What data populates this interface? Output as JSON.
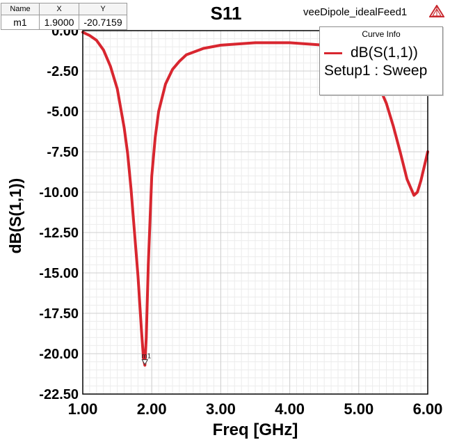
{
  "header": {
    "title": "S11",
    "project": "veeDipole_idealFeed1"
  },
  "marker_table": {
    "columns": [
      "Name",
      "X",
      "Y"
    ],
    "rows": [
      [
        "m1",
        "1.9000",
        "-20.7159"
      ]
    ]
  },
  "legend": {
    "heading": "Curve Info",
    "trace": "dB(S(1,1))",
    "sweep": "Setup1 : Sweep"
  },
  "colors": {
    "trace": "#d8262f",
    "grid_major": "#cfcfcf",
    "grid_minor": "#ececec"
  },
  "chart_data": {
    "type": "line",
    "title": "S11",
    "xlabel": "Freq [GHz]",
    "ylabel": "dB(S(1,1))",
    "xlim": [
      1.0,
      6.0
    ],
    "ylim": [
      -22.5,
      0.0
    ],
    "x_ticks": [
      "1.00",
      "2.00",
      "3.00",
      "4.00",
      "5.00",
      "6.00"
    ],
    "y_ticks": [
      "0.00",
      "-2.50",
      "-5.00",
      "-7.50",
      "-10.00",
      "-12.50",
      "-15.00",
      "-17.50",
      "-20.00",
      "-22.50"
    ],
    "grid": true,
    "legend_position": "top-right",
    "series": [
      {
        "name": "dB(S(1,1))",
        "x": [
          1.0,
          1.1,
          1.2,
          1.3,
          1.4,
          1.5,
          1.6,
          1.65,
          1.7,
          1.75,
          1.8,
          1.85,
          1.88,
          1.9,
          1.92,
          1.95,
          2.0,
          2.05,
          2.1,
          2.2,
          2.3,
          2.4,
          2.5,
          2.75,
          3.0,
          3.5,
          4.0,
          4.5,
          5.0,
          5.2,
          5.4,
          5.5,
          5.6,
          5.7,
          5.8,
          5.85,
          5.9,
          6.0
        ],
        "y": [
          -0.1,
          -0.3,
          -0.6,
          -1.2,
          -2.2,
          -3.6,
          -6.0,
          -7.6,
          -9.8,
          -12.5,
          -15.2,
          -18.5,
          -20.3,
          -20.7159,
          -19.0,
          -14.5,
          -9.0,
          -6.6,
          -5.0,
          -3.3,
          -2.4,
          -1.9,
          -1.5,
          -1.1,
          -0.9,
          -0.75,
          -0.75,
          -0.9,
          -1.5,
          -2.5,
          -4.5,
          -5.9,
          -7.5,
          -9.2,
          -10.2,
          -10.0,
          -9.3,
          -7.5
        ]
      }
    ],
    "marker": {
      "label": "m1",
      "x": 1.9,
      "y": -20.7159
    }
  }
}
